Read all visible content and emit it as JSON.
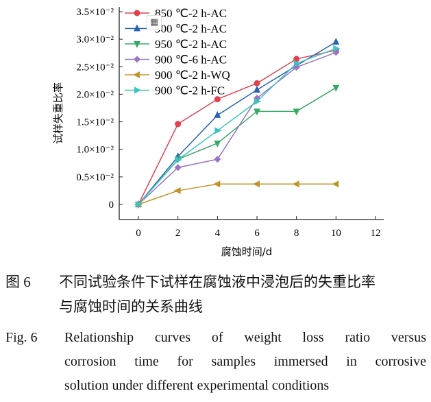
{
  "chart_data": {
    "type": "line",
    "xlabel": "腐蚀时间/d",
    "ylabel": "试样失重比率",
    "xlim": [
      0,
      12
    ],
    "ylim": [
      0,
      0.035
    ],
    "x_ticks": [
      "0",
      "2",
      "4",
      "6",
      "8",
      "10",
      "12"
    ],
    "y_ticks": [
      {
        "v": 0,
        "t": "0"
      },
      {
        "v": 0.005,
        "t": "0.5×10⁻²"
      },
      {
        "v": 0.01,
        "t": "1.0×10⁻²"
      },
      {
        "v": 0.015,
        "t": "1.5×10⁻²"
      },
      {
        "v": 0.02,
        "t": "2.0×10⁻²"
      },
      {
        "v": 0.025,
        "t": "2.5×10⁻²"
      },
      {
        "v": 0.03,
        "t": "3.0×10⁻²"
      },
      {
        "v": 0.035,
        "t": "3.5×10⁻²"
      }
    ],
    "grid": false,
    "legend_position": "top-left",
    "x": [
      0,
      2,
      4,
      6,
      8,
      10
    ],
    "series": [
      {
        "name": "850 ℃-2 h-AC",
        "color": "#e0404f",
        "marker": "circle",
        "values": [
          0,
          0.0146,
          0.0191,
          0.022,
          0.0264,
          0.028
        ]
      },
      {
        "name": "900 ℃-2 h-AC",
        "color": "#2a62b0",
        "marker": "triangle-up",
        "values": [
          0,
          0.0087,
          0.0162,
          0.0208,
          0.0252,
          0.0295
        ]
      },
      {
        "name": "950 ℃-2 h-AC",
        "color": "#3aa868",
        "marker": "triangle-down",
        "values": [
          0,
          0.0082,
          0.0111,
          0.0169,
          0.0169,
          0.0212
        ]
      },
      {
        "name": "900 ℃-6 h-AC",
        "color": "#9a74c0",
        "marker": "diamond",
        "values": [
          0,
          0.0067,
          0.0082,
          0.0193,
          0.0249,
          0.0276
        ]
      },
      {
        "name": "900 ℃-2 h-WQ",
        "color": "#c0962a",
        "marker": "triangle-left",
        "values": [
          0,
          0.0025,
          0.0037,
          0.0037,
          0.0037,
          0.0037
        ]
      },
      {
        "name": "900 ℃-2 h-FC",
        "color": "#3cc4c0",
        "marker": "triangle-right",
        "values": [
          0,
          0.0081,
          0.0134,
          0.0187,
          0.0256,
          0.0283
        ]
      }
    ]
  },
  "caption": {
    "zh_label": "图 6",
    "zh_text_line1": "不同试验条件下试样在腐蚀液中浸泡后的失重比率",
    "zh_text_line2": "与腐蚀时间的关系曲线",
    "en_label": "Fig. 6",
    "en_line1": "Relationship curves of weight loss ratio versus",
    "en_line2": "corrosion time for samples immersed in corrosive",
    "en_line3": "solution under different experimental conditions"
  },
  "overlay": {
    "icon": "table-icon"
  }
}
